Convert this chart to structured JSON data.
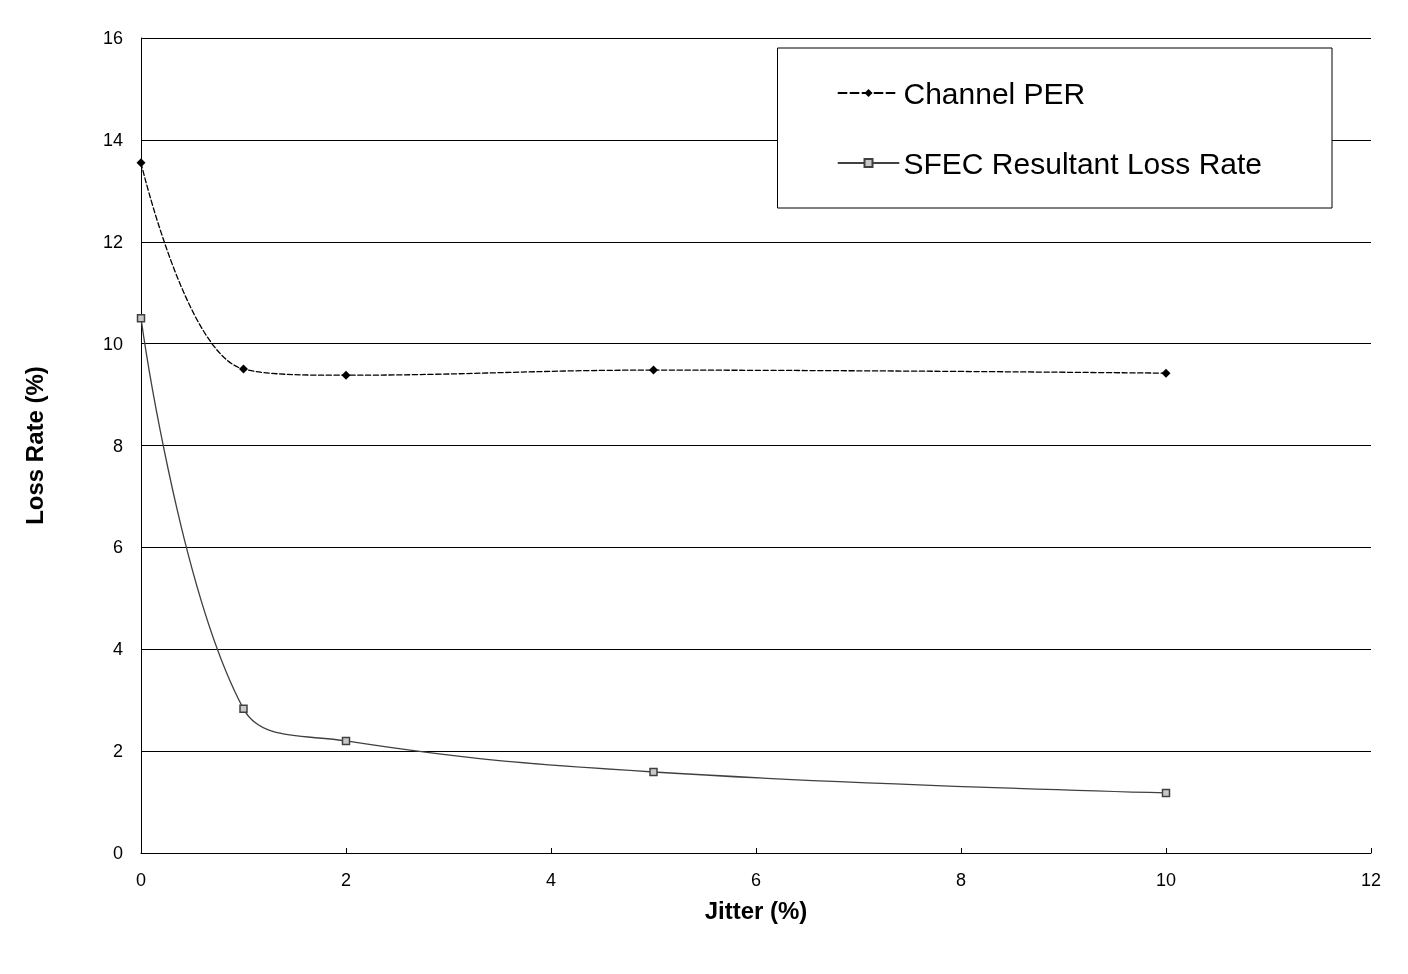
{
  "chart_data": {
    "type": "line",
    "xlabel": "Jitter (%)",
    "ylabel": "Loss Rate (%)",
    "x": [
      0,
      1,
      2,
      5,
      10
    ],
    "series": [
      {
        "name": "Channel PER",
        "color": "#000000",
        "values": [
          13.55,
          9.5,
          9.38,
          9.48,
          9.42
        ],
        "marker": "diamond",
        "line_style": "dashed"
      },
      {
        "name": "SFEC Resultant Loss Rate",
        "color": "#404040",
        "values": [
          10.5,
          2.83,
          2.2,
          1.59,
          1.18
        ],
        "marker": "square",
        "line_style": "solid"
      }
    ],
    "xlim": [
      0,
      12
    ],
    "xticks": [
      0,
      2,
      4,
      6,
      8,
      10,
      12
    ],
    "ylim": [
      0,
      16
    ],
    "yticks": [
      0,
      2,
      4,
      6,
      8,
      10,
      12,
      14,
      16
    ],
    "grid": "y",
    "legend": "top right"
  }
}
